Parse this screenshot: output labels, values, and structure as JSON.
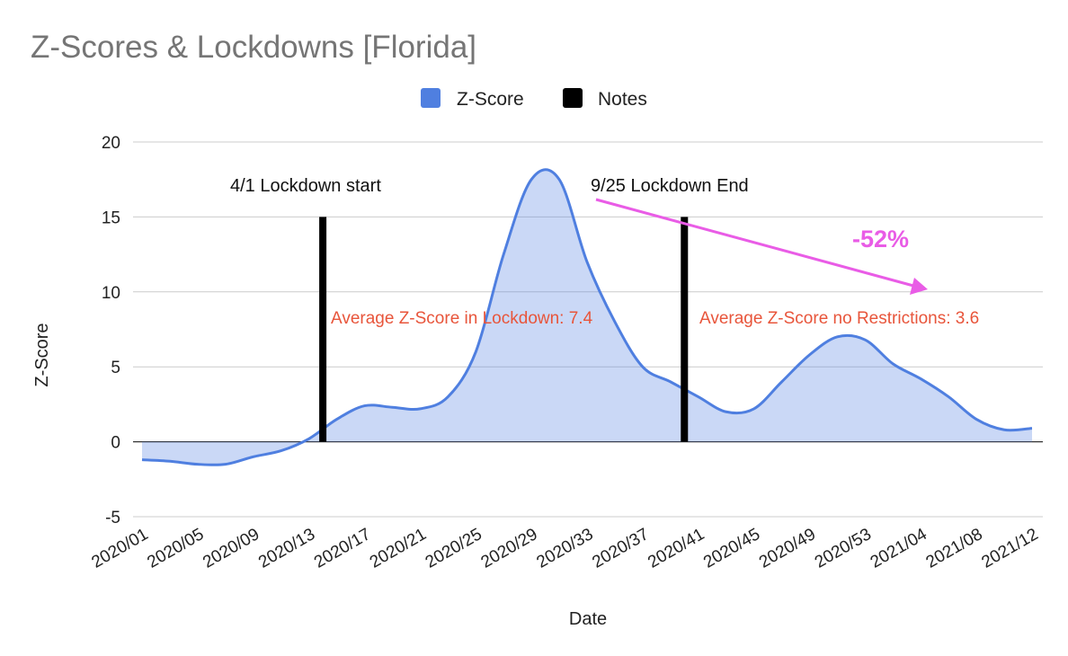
{
  "chart_data": {
    "type": "area",
    "title": "Z-Scores & Lockdowns [Florida]",
    "xlabel": "Date",
    "ylabel": "Z-Score",
    "ylim": [
      -5,
      20
    ],
    "yticks": [
      -5,
      0,
      5,
      10,
      15,
      20
    ],
    "grid": true,
    "legend_position": "top",
    "x_tick_labels": [
      "2020/01",
      "2020/05",
      "2020/09",
      "2020/13",
      "2020/17",
      "2020/21",
      "2020/25",
      "2020/29",
      "2020/33",
      "2020/37",
      "2020/41",
      "2020/45",
      "2020/49",
      "2020/53",
      "2021/04",
      "2021/08",
      "2021/12"
    ],
    "series": [
      {
        "name": "Z-Score",
        "color": "#4f7fe0",
        "points": [
          [
            "2020/01",
            -1.2
          ],
          [
            "2020/03",
            -1.3
          ],
          [
            "2020/05",
            -1.5
          ],
          [
            "2020/07",
            -1.5
          ],
          [
            "2020/09",
            -1.0
          ],
          [
            "2020/11",
            -0.6
          ],
          [
            "2020/13",
            0.2
          ],
          [
            "2020/15",
            1.5
          ],
          [
            "2020/17",
            2.4
          ],
          [
            "2020/19",
            2.3
          ],
          [
            "2020/21",
            2.2
          ],
          [
            "2020/23",
            3.0
          ],
          [
            "2020/25",
            6.0
          ],
          [
            "2020/27",
            12.5
          ],
          [
            "2020/29",
            17.5
          ],
          [
            "2020/31",
            17.5
          ],
          [
            "2020/33",
            12.0
          ],
          [
            "2020/35",
            8.0
          ],
          [
            "2020/37",
            5.0
          ],
          [
            "2020/39",
            4.0
          ],
          [
            "2020/41",
            3.0
          ],
          [
            "2020/43",
            2.0
          ],
          [
            "2020/45",
            2.2
          ],
          [
            "2020/47",
            4.0
          ],
          [
            "2020/49",
            5.8
          ],
          [
            "2020/51",
            7.0
          ],
          [
            "2020/53",
            6.8
          ],
          [
            "2021/02",
            5.2
          ],
          [
            "2021/04",
            4.2
          ],
          [
            "2021/06",
            3.0
          ],
          [
            "2021/08",
            1.5
          ],
          [
            "2021/10",
            0.8
          ],
          [
            "2021/12",
            0.9
          ]
        ]
      },
      {
        "name": "Notes",
        "color": "#000000",
        "bars": [
          {
            "x": "2020/14",
            "value": 15
          },
          {
            "x": "2020/40",
            "value": 15
          }
        ]
      }
    ],
    "annotations": [
      {
        "text": "4/1 Lockdown start",
        "kind": "note"
      },
      {
        "text": "9/25 Lockdown End",
        "kind": "note"
      },
      {
        "text": "Average Z-Score in Lockdown: 7.4",
        "kind": "average"
      },
      {
        "text": "Average Z-Score no Restrictions: 3.6",
        "kind": "average"
      },
      {
        "text": "-52%",
        "kind": "change"
      }
    ]
  }
}
